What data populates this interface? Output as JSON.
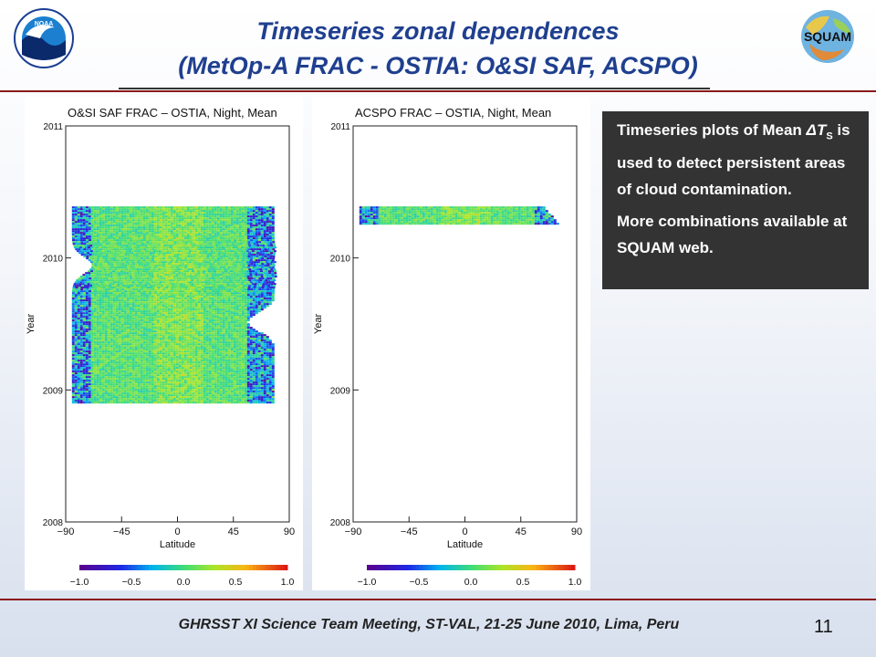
{
  "header": {
    "title_line1": "Timeseries zonal dependences",
    "title_line2": "(MetOp-A FRAC - OSTIA: O&SI SAF, ACSPO)",
    "logo_left_text": "NOAA",
    "logo_right_text": "SQUAM"
  },
  "note": {
    "line1": "Timeseries plots of Mean",
    "line2_prefix": "ΔT",
    "line2_sub": "S",
    "line2_suffix": " is used to detect persistent areas of cloud contamination.",
    "line3": "More combinations available at SQUAM web."
  },
  "footer": {
    "text": "GHRSST XI Science Team Meeting, ST-VAL, 21-25 June 2010, Lima, Peru",
    "page_number": "11"
  },
  "colors": {
    "title": "#1f3f8f",
    "rule": "#8b1a1a",
    "note_bg": "#333333"
  },
  "chart_data": [
    {
      "type": "heatmap",
      "title": "O&SI SAF FRAC – OSTIA, Night, Mean",
      "xlabel": "Latitude",
      "ylabel": "Year",
      "xlim": [
        -90,
        90
      ],
      "ylim": [
        2008,
        2011
      ],
      "x_ticks": [
        "-90",
        "-45",
        "0",
        "45",
        "90"
      ],
      "y_ticks": [
        "2008",
        "2009",
        "2010",
        "2011"
      ],
      "colorbar": {
        "min": -1.0,
        "max": 1.0,
        "ticks": [
          "-1.0",
          "-0.5",
          "0.0",
          "0.5",
          "1.0"
        ]
      },
      "data_coverage": {
        "time_start": 2008.9,
        "time_end": 2010.39,
        "lat_min": -85,
        "lat_max": 78
      },
      "dominant_value": 0.0
    },
    {
      "type": "heatmap",
      "title": "ACSPO FRAC – OSTIA, Night, Mean",
      "xlabel": "Latitude",
      "ylabel": "Year",
      "xlim": [
        -90,
        90
      ],
      "ylim": [
        2008,
        2011
      ],
      "x_ticks": [
        "-90",
        "-45",
        "0",
        "45",
        "90"
      ],
      "y_ticks": [
        "2008",
        "2009",
        "2010",
        "2011"
      ],
      "colorbar": {
        "min": -1.0,
        "max": 1.0,
        "ticks": [
          "-1.0",
          "-0.5",
          "0.0",
          "0.5",
          "1.0"
        ]
      },
      "data_coverage": {
        "time_start": 2010.26,
        "time_end": 2010.39,
        "lat_min": -85,
        "lat_max": 75
      },
      "dominant_value": 0.0
    }
  ]
}
